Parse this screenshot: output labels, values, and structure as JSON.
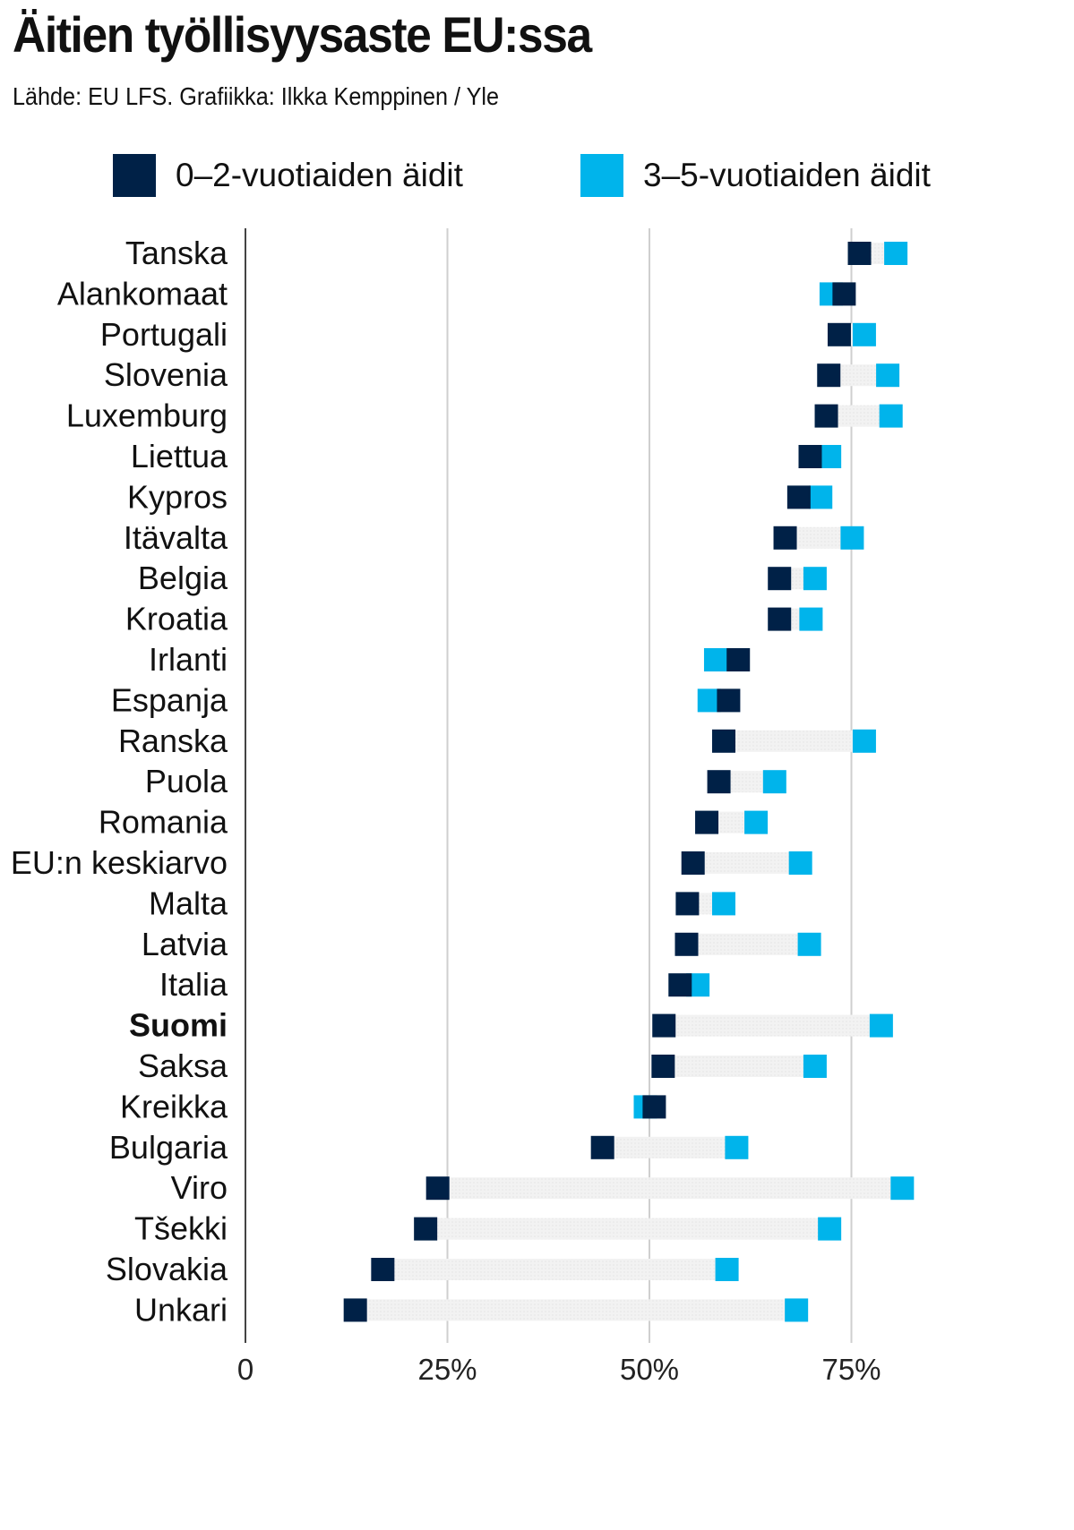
{
  "chart_data": {
    "type": "dumbbell",
    "title": "Äitien työllisyysaste EU:ssa",
    "subtitle": "Lähde: EU LFS. Grafiikka: Ilkka Kemppinen / Yle",
    "xlim": [
      0,
      85
    ],
    "x_ticks": [
      {
        "value": 0,
        "label": "0"
      },
      {
        "value": 25,
        "label": "25%"
      },
      {
        "value": 50,
        "label": "50%"
      },
      {
        "value": 75,
        "label": "75%"
      }
    ],
    "grid": true,
    "legend_position": "top",
    "series": [
      {
        "name": "0–2-vuotiaiden äidit",
        "color": "#002147"
      },
      {
        "name": "3–5-vuotiaiden äidit",
        "color": "#00b4eb"
      }
    ],
    "highlight": "Suomi",
    "categories": [
      "Tanska",
      "Alankomaat",
      "Portugali",
      "Slovenia",
      "Luxemburg",
      "Liettua",
      "Kypros",
      "Itävalta",
      "Belgia",
      "Kroatia",
      "Irlanti",
      "Espanja",
      "Ranska",
      "Puola",
      "Romania",
      "EU:n keskiarvo",
      "Malta",
      "Latvia",
      "Italia",
      "Suomi",
      "Saksa",
      "Kreikka",
      "Bulgaria",
      "Viro",
      "Tšekki",
      "Slovakia",
      "Unkari"
    ],
    "rows": [
      {
        "country": "Tanska",
        "age_0_2": 76,
        "age_3_5": 80.5
      },
      {
        "country": "Alankomaat",
        "age_0_2": 74.1,
        "age_3_5": 72.5
      },
      {
        "country": "Portugali",
        "age_0_2": 73.5,
        "age_3_5": 76.6
      },
      {
        "country": "Slovenia",
        "age_0_2": 72.2,
        "age_3_5": 79.5
      },
      {
        "country": "Luxemburg",
        "age_0_2": 71.9,
        "age_3_5": 79.9
      },
      {
        "country": "Liettua",
        "age_0_2": 69.9,
        "age_3_5": 72.3
      },
      {
        "country": "Kypros",
        "age_0_2": 68.5,
        "age_3_5": 71.2
      },
      {
        "country": "Itävalta",
        "age_0_2": 66.8,
        "age_3_5": 75.1
      },
      {
        "country": "Belgia",
        "age_0_2": 66.1,
        "age_3_5": 70.5
      },
      {
        "country": "Kroatia",
        "age_0_2": 66.1,
        "age_3_5": 70.0
      },
      {
        "country": "Irlanti",
        "age_0_2": 61.0,
        "age_3_5": 58.2
      },
      {
        "country": "Espanja",
        "age_0_2": 59.8,
        "age_3_5": 57.4
      },
      {
        "country": "Ranska",
        "age_0_2": 59.2,
        "age_3_5": 76.6
      },
      {
        "country": "Puola",
        "age_0_2": 58.6,
        "age_3_5": 65.5
      },
      {
        "country": "Romania",
        "age_0_2": 57.1,
        "age_3_5": 63.2
      },
      {
        "country": "EU:n keskiarvo",
        "age_0_2": 55.4,
        "age_3_5": 68.7
      },
      {
        "country": "Malta",
        "age_0_2": 54.7,
        "age_3_5": 59.2
      },
      {
        "country": "Latvia",
        "age_0_2": 54.6,
        "age_3_5": 69.8
      },
      {
        "country": "Italia",
        "age_0_2": 53.8,
        "age_3_5": 56.0
      },
      {
        "country": "Suomi",
        "age_0_2": 51.8,
        "age_3_5": 78.7
      },
      {
        "country": "Saksa",
        "age_0_2": 51.7,
        "age_3_5": 70.5
      },
      {
        "country": "Kreikka",
        "age_0_2": 50.6,
        "age_3_5": 49.5
      },
      {
        "country": "Bulgaria",
        "age_0_2": 44.2,
        "age_3_5": 60.8
      },
      {
        "country": "Viro",
        "age_0_2": 23.8,
        "age_3_5": 81.3
      },
      {
        "country": "Tšekki",
        "age_0_2": 22.3,
        "age_3_5": 72.3
      },
      {
        "country": "Slovakia",
        "age_0_2": 17.0,
        "age_3_5": 59.6
      },
      {
        "country": "Unkari",
        "age_0_2": 13.6,
        "age_3_5": 68.2
      }
    ]
  }
}
